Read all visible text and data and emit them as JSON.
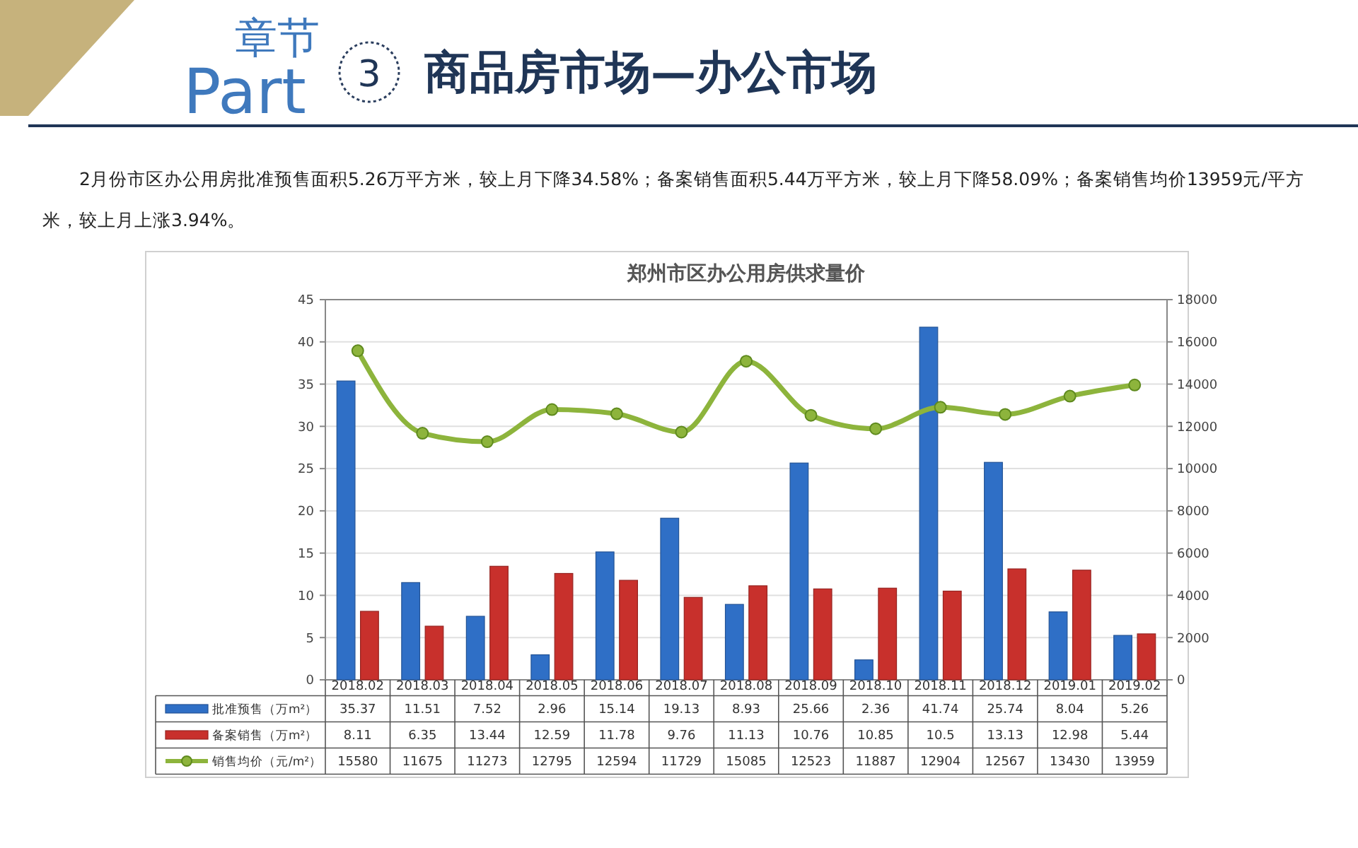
{
  "chart_data": {
    "type": "bar",
    "title": "郑州市区办公用房供求量价",
    "annotations": [
      "章节",
      "Part",
      "3",
      "商品房市场—办公市场",
      "2月份市区办公用房批准预售面积5.26万平方米，较上月下降34.58%；备案销售面积5.44万平方米，较上月下降58.09%；备案销售均价13959元/平方米，较上月上涨3.94%。"
    ],
    "categories": [
      "2018.02",
      "2018.03",
      "2018.04",
      "2018.05",
      "2018.06",
      "2018.07",
      "2018.08",
      "2018.09",
      "2018.10",
      "2018.11",
      "2018.12",
      "2019.01",
      "2019.02"
    ],
    "series": [
      {
        "name": "批准预售（万m²）",
        "color": "#2f6fc6",
        "values": [
          35.37,
          11.51,
          7.52,
          2.96,
          15.14,
          19.13,
          8.93,
          25.66,
          2.36,
          41.74,
          25.74,
          8.04,
          5.26
        ]
      },
      {
        "name": "备案销售（万m²）",
        "color": "#c8302c",
        "values": [
          8.11,
          6.35,
          13.44,
          12.59,
          11.78,
          9.76,
          11.13,
          10.76,
          10.85,
          10.5,
          13.13,
          12.98,
          5.44
        ]
      },
      {
        "name": "销售均价（元/m²）",
        "type": "line",
        "axis": "y2",
        "color": "#8db43c",
        "values": [
          15580,
          11675,
          11273,
          12795,
          12594,
          11729,
          15085,
          12523,
          11887,
          12904,
          12567,
          13430,
          13959
        ]
      }
    ],
    "ylim": [
      0,
      45
    ],
    "yticks": [
      0,
      5,
      10,
      15,
      20,
      25,
      30,
      35,
      40,
      45
    ],
    "y2lim": [
      0,
      18000
    ],
    "y2ticks": [
      0,
      2000,
      4000,
      6000,
      8000,
      10000,
      12000,
      14000,
      16000,
      18000
    ],
    "grid": "y",
    "legend": "bottom",
    "marker": "circle",
    "line_style": "solid",
    "data_labels": true
  }
}
